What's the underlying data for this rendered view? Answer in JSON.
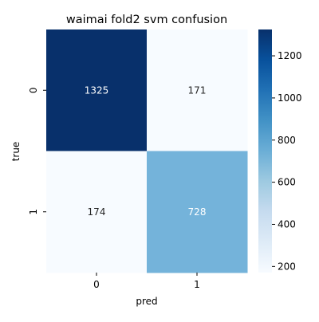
{
  "chart_data": {
    "type": "heatmap",
    "title": "waimai fold2 svm confusion",
    "xlabel": "pred",
    "ylabel": "true",
    "x_categories": [
      "0",
      "1"
    ],
    "y_categories": [
      "0",
      "1"
    ],
    "values": [
      [
        1325,
        171
      ],
      [
        174,
        728
      ]
    ],
    "value_labels": [
      [
        "1325",
        "171"
      ],
      [
        "174",
        "728"
      ]
    ],
    "colormap": "Blues",
    "color_range": [
      171,
      1325
    ],
    "colorbar_ticks": [
      "200",
      "400",
      "600",
      "800",
      "1000",
      "1200"
    ],
    "colorbar_tick_values": [
      200,
      400,
      600,
      800,
      1000,
      1200
    ],
    "cell_colors": [
      [
        "#08306b",
        "#f7fbff"
      ],
      [
        "#f7fbff",
        "#74b3da"
      ]
    ],
    "text_colors": [
      [
        "#ffffff",
        "#262626"
      ],
      [
        "#262626",
        "#ffffff"
      ]
    ]
  }
}
